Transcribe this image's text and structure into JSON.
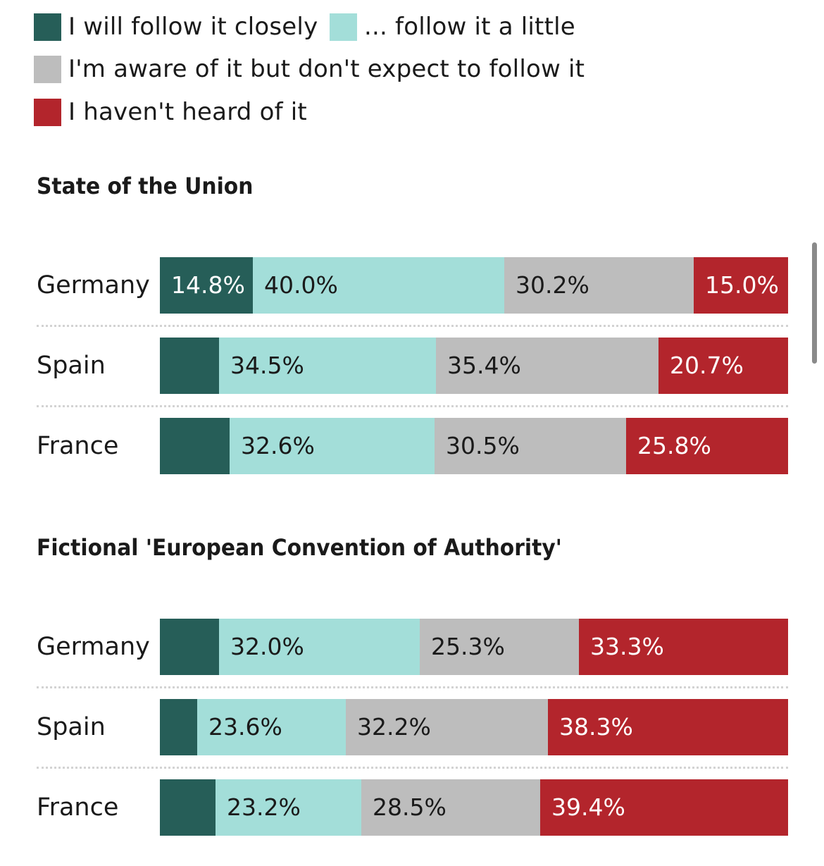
{
  "colors": {
    "closely": "#265e58",
    "little": "#a3ded9",
    "aware": "#bdbdbd",
    "not_heard": "#b3252c",
    "text_dark": "#1a1a1a",
    "text_light": "#ffffff"
  },
  "legend": [
    {
      "key": "closely",
      "label": "I will follow it closely"
    },
    {
      "key": "little",
      "label": "... follow it a little"
    },
    {
      "key": "aware",
      "label": "I'm aware of it but don't expect to follow it"
    },
    {
      "key": "not_heard",
      "label": "I haven't heard of it"
    }
  ],
  "chart_data": [
    {
      "type": "bar",
      "orientation": "horizontal",
      "stacked": "100%",
      "title": "State of the Union",
      "categories": [
        "Germany",
        "Spain",
        "France"
      ],
      "series": [
        {
          "name": "I will follow it closely",
          "key": "closely",
          "values": [
            14.8,
            9.4,
            11.1
          ],
          "labels": [
            "14.8%",
            "",
            ""
          ]
        },
        {
          "name": "... follow it a little",
          "key": "little",
          "values": [
            40.0,
            34.5,
            32.6
          ],
          "labels": [
            "40.0%",
            "34.5%",
            "32.6%"
          ]
        },
        {
          "name": "I'm aware of it but don't expect to follow it",
          "key": "aware",
          "values": [
            30.2,
            35.4,
            30.5
          ],
          "labels": [
            "30.2%",
            "35.4%",
            "30.5%"
          ]
        },
        {
          "name": "I haven't heard of it",
          "key": "not_heard",
          "values": [
            15.0,
            20.7,
            25.8
          ],
          "labels": [
            "15.0%",
            "20.7%",
            "25.8%"
          ]
        }
      ]
    },
    {
      "type": "bar",
      "orientation": "horizontal",
      "stacked": "100%",
      "title": "Fictional 'European Convention of Authority'",
      "categories": [
        "Germany",
        "Spain",
        "France"
      ],
      "series": [
        {
          "name": "I will follow it closely",
          "key": "closely",
          "values": [
            9.4,
            5.9,
            8.9
          ],
          "labels": [
            "",
            "",
            ""
          ]
        },
        {
          "name": "... follow it a little",
          "key": "little",
          "values": [
            32.0,
            23.6,
            23.2
          ],
          "labels": [
            "32.0%",
            "23.6%",
            "23.2%"
          ]
        },
        {
          "name": "I'm aware of it but don't expect to follow it",
          "key": "aware",
          "values": [
            25.3,
            32.2,
            28.5
          ],
          "labels": [
            "25.3%",
            "32.2%",
            "28.5%"
          ]
        },
        {
          "name": "I haven't heard of it",
          "key": "not_heard",
          "values": [
            33.3,
            38.3,
            39.4
          ],
          "labels": [
            "33.3%",
            "38.3%",
            "39.4%"
          ]
        }
      ]
    }
  ]
}
